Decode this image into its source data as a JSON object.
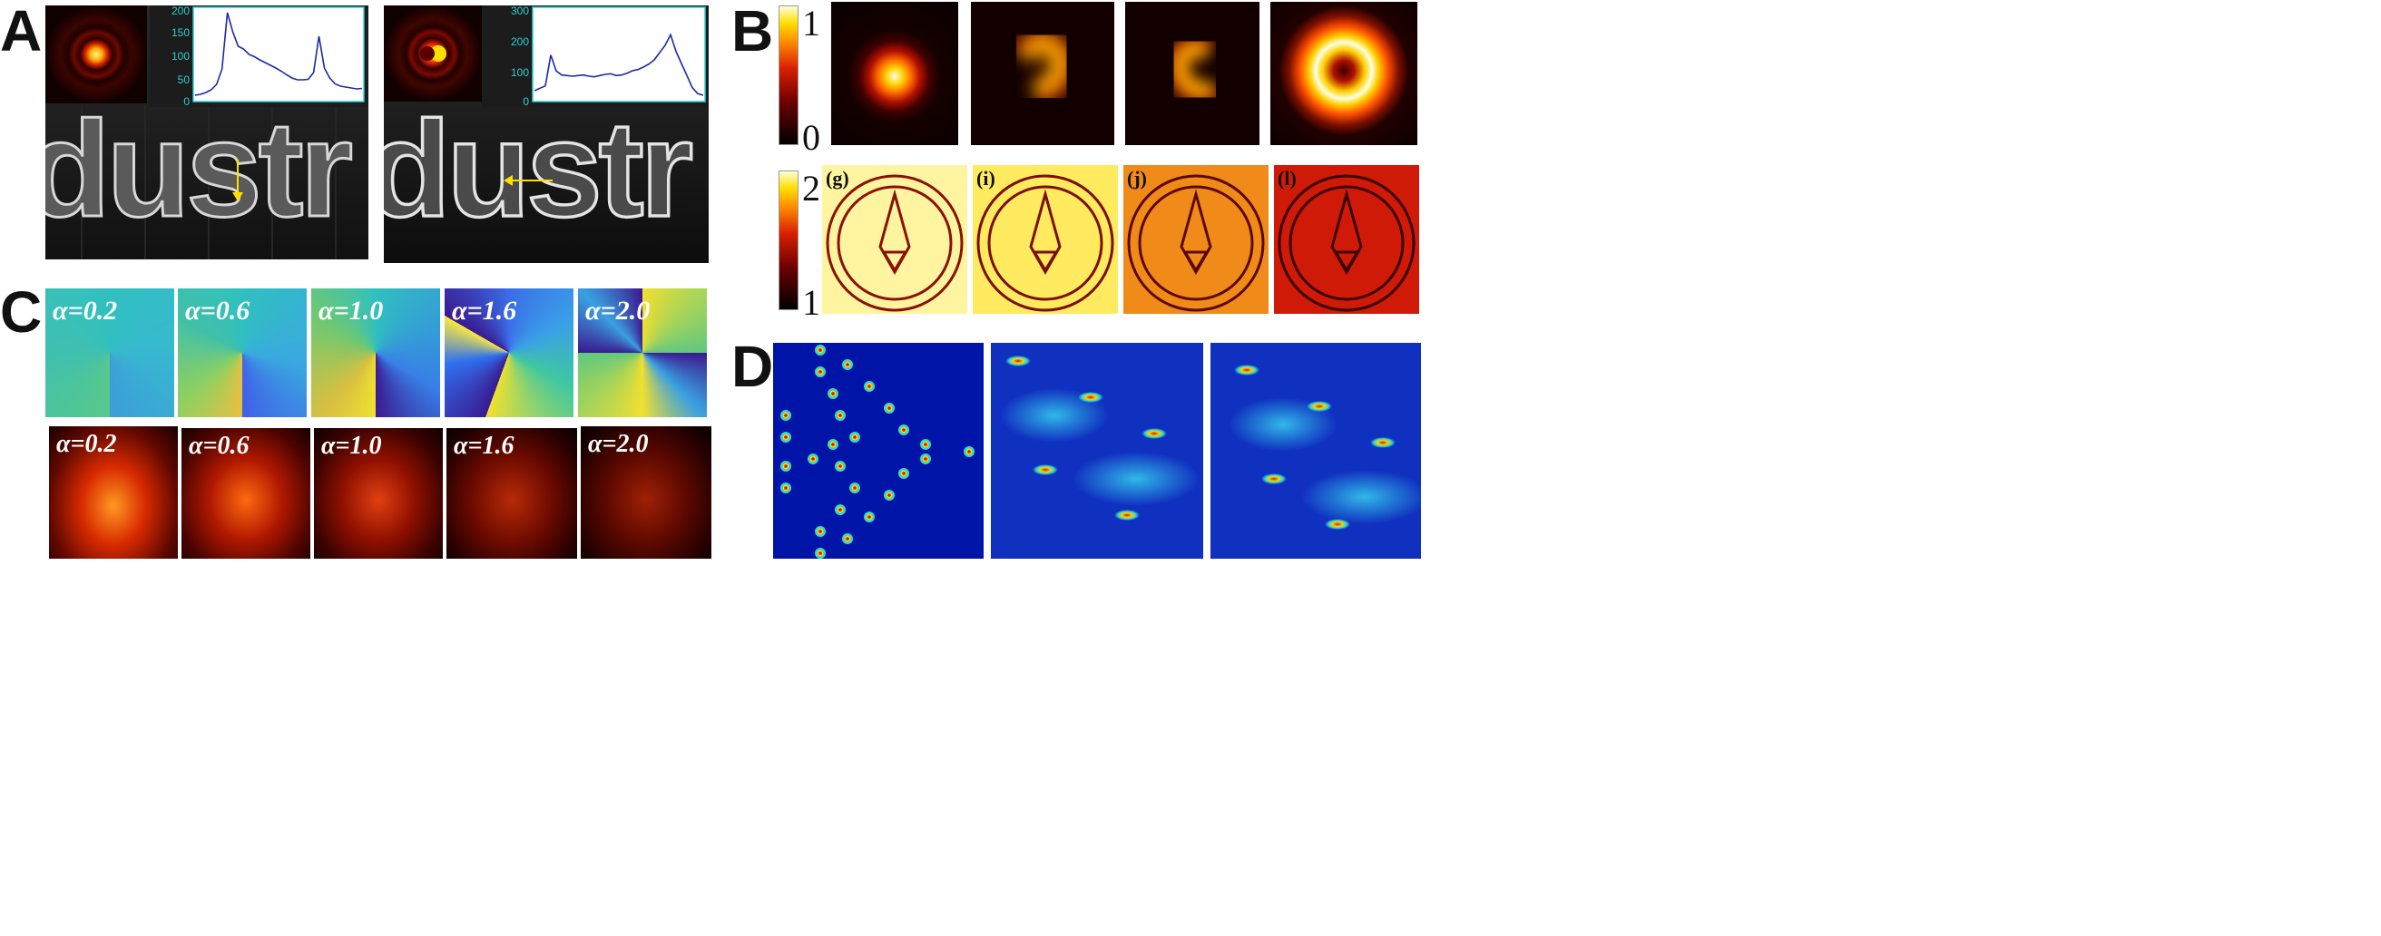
{
  "panel_labels": {
    "a": "A",
    "b": "B",
    "c": "C",
    "d": "D"
  },
  "panel_a": {
    "left": {
      "text": "dustr",
      "plot": {
        "y_ticks": [
          "200",
          "150",
          "100",
          "50",
          "0"
        ],
        "y_max": 200,
        "profile": [
          10,
          12,
          16,
          22,
          34,
          68,
          192,
          150,
          118,
          112,
          100,
          95,
          88,
          82,
          76,
          70,
          63,
          55,
          48,
          44,
          44,
          45,
          60,
          140,
          70,
          48,
          35,
          30,
          28,
          26,
          24,
          25
        ]
      }
    },
    "right": {
      "text": "dustr",
      "plot": {
        "y_ticks": [
          "300",
          "200",
          "100",
          "0"
        ],
        "y_max": 300,
        "profile": [
          30,
          38,
          46,
          148,
          95,
          82,
          80,
          78,
          80,
          82,
          78,
          76,
          80,
          84,
          86,
          80,
          82,
          88,
          96,
          100,
          108,
          118,
          132,
          156,
          180,
          215,
          160,
          120,
          80,
          40,
          20,
          15
        ]
      }
    }
  },
  "panel_b": {
    "colorbar_top": {
      "max": "1",
      "min": "0"
    },
    "colorbar_bottom": {
      "max": "2",
      "min": "1"
    },
    "coin_labels": [
      "(g)",
      "(i)",
      "(j)",
      "(l)"
    ],
    "colors": {
      "hot_dark": "#1a0000",
      "hot_mid": "#c01800",
      "hot_bright": "#ffd400",
      "hot_white": "#ffffe6"
    }
  },
  "panel_c": {
    "top_labels": [
      "α=0.2",
      "α=0.6",
      "α=1.0",
      "α=1.6",
      "α=2.0"
    ],
    "bottom_labels": [
      "α=0.2",
      "α=0.6",
      "α=1.0",
      "α=1.6",
      "α=2.0"
    ]
  },
  "panel_d": {
    "colors": {
      "bg": "#0014a8",
      "spot_core": "#c02000",
      "spot_ring": "#ffd000",
      "spot_outer": "#30d8d0"
    }
  }
}
